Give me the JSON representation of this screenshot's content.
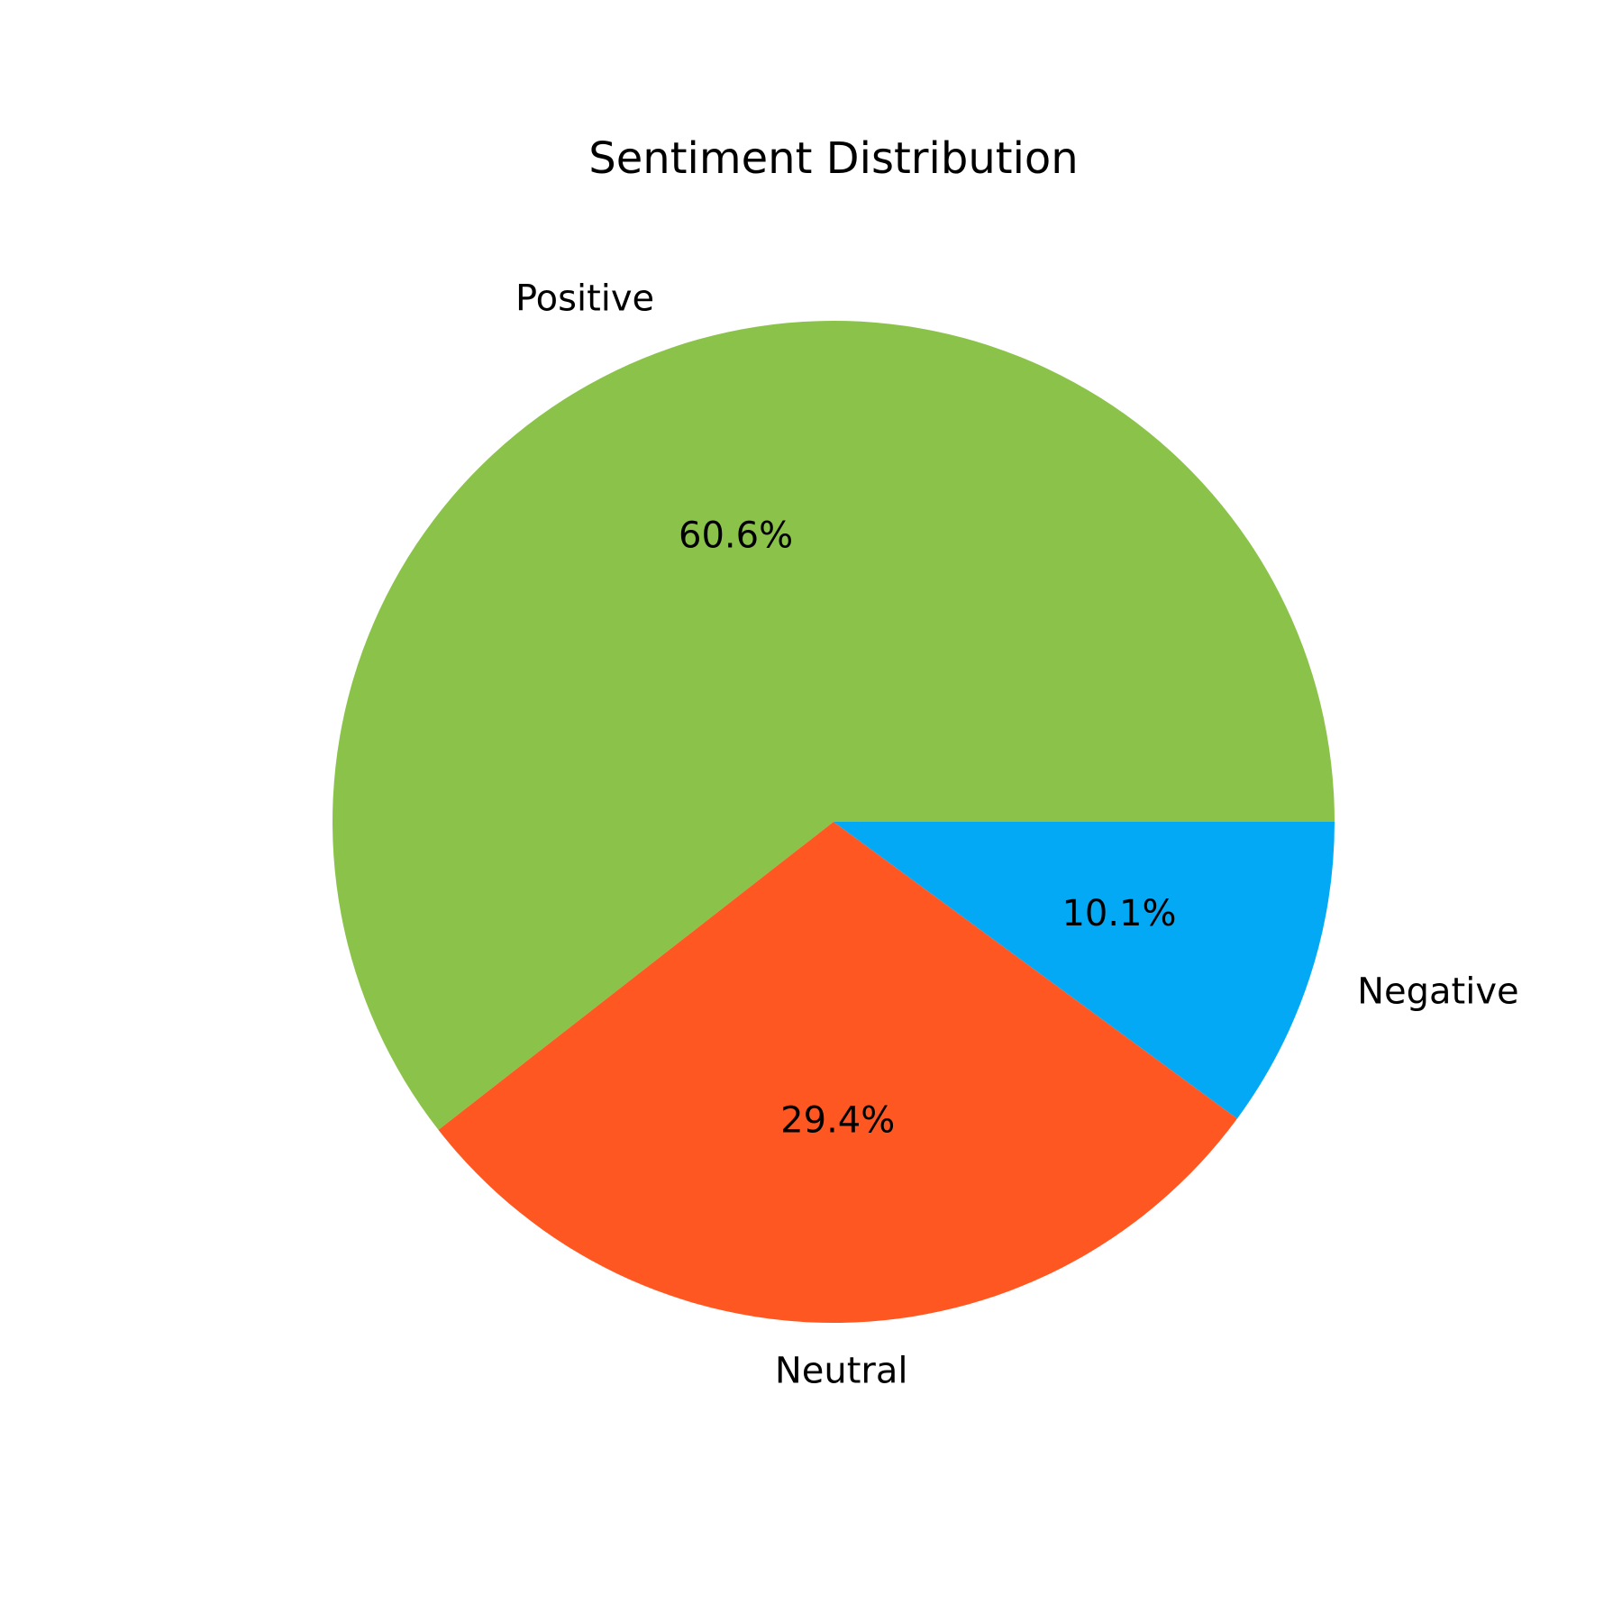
{
  "chart_data": {
    "type": "pie",
    "title": "Sentiment Distribution",
    "start_angle_deg": 0,
    "direction": "counterclockwise",
    "slices": [
      {
        "label": "Positive",
        "value": 60.6,
        "pct_label": "60.6%",
        "color": "#8BC34A"
      },
      {
        "label": "Neutral",
        "value": 29.4,
        "pct_label": "29.4%",
        "color": "#FF5722"
      },
      {
        "label": "Negative",
        "value": 10.1,
        "pct_label": "10.1%",
        "color": "#03A9F4"
      }
    ]
  }
}
